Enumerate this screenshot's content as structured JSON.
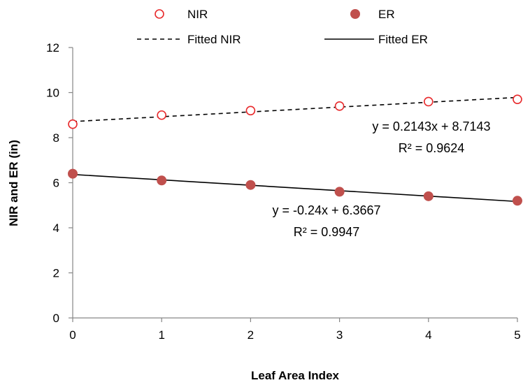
{
  "chart_data": {
    "type": "scatter",
    "xlabel": "Leaf Area Index",
    "ylabel": "NIR and ER (in)",
    "xlim": [
      0,
      5
    ],
    "ylim": [
      0,
      12
    ],
    "x_ticks": [
      "0",
      "1",
      "2",
      "3",
      "4",
      "5"
    ],
    "y_ticks": [
      "0",
      "2",
      "4",
      "6",
      "8",
      "10",
      "12"
    ],
    "grid": false,
    "legend_position": "top",
    "x": [
      0,
      1,
      2,
      3,
      4,
      5
    ],
    "series": [
      {
        "name": "NIR",
        "marker": "open-circle",
        "color": "#e8292b",
        "values": [
          8.6,
          9.0,
          9.2,
          9.4,
          9.6,
          9.7
        ]
      },
      {
        "name": "ER",
        "marker": "filled-circle",
        "color": "#c0504d",
        "values": [
          6.4,
          6.1,
          5.9,
          5.6,
          5.4,
          5.2
        ]
      }
    ],
    "fits": [
      {
        "name": "Fitted NIR",
        "style": "dashed",
        "color": "#000000",
        "slope": 0.2143,
        "intercept": 8.7143,
        "equation": "y = 0.2143x + 8.7143",
        "r2": "R² = 0.9624"
      },
      {
        "name": "Fitted ER",
        "style": "solid",
        "color": "#000000",
        "slope": -0.24,
        "intercept": 6.3667,
        "equation": "y = -0.24x + 6.3667",
        "r2": "R² = 0.9947"
      }
    ]
  }
}
